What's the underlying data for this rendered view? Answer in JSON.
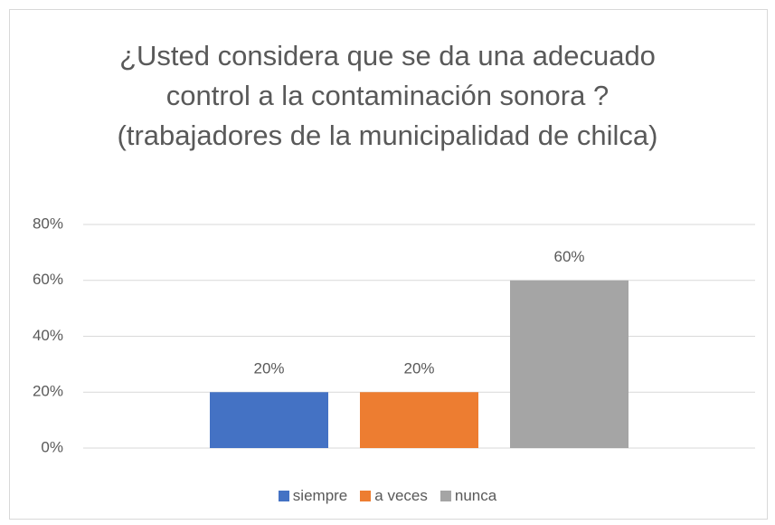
{
  "chart_data": {
    "type": "bar",
    "title": [
      "¿Usted considera que se da una adecuado",
      "control a la contaminación sonora ?",
      "(trabajadores de la municipalidad de chilca)"
    ],
    "categories": [
      null
    ],
    "series": [
      {
        "name": "siempre",
        "color": "#4472c4",
        "values": [
          20
        ],
        "value_labels": [
          "20%"
        ]
      },
      {
        "name": "a veces",
        "color": "#ed7d31",
        "values": [
          20
        ],
        "value_labels": [
          "20%"
        ]
      },
      {
        "name": "nunca",
        "color": "#a5a5a5",
        "values": [
          60
        ],
        "value_labels": [
          "60%"
        ]
      }
    ],
    "ylim": [
      0,
      80
    ],
    "yticks": [
      {
        "value": 0,
        "label": "0%"
      },
      {
        "value": 20,
        "label": "20%"
      },
      {
        "value": 40,
        "label": "40%"
      },
      {
        "value": 60,
        "label": "60%"
      },
      {
        "value": 80,
        "label": "80%"
      }
    ],
    "grid": true,
    "legend": "bottom"
  }
}
